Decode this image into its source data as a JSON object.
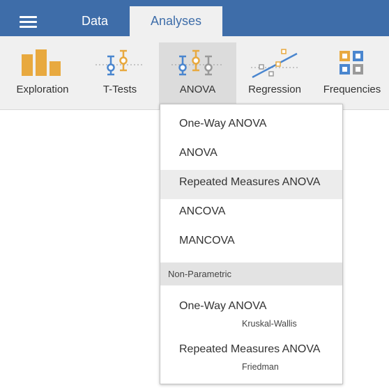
{
  "tabs": {
    "data_label": "Data",
    "analyses_label": "Analyses"
  },
  "ribbon": {
    "exploration": "Exploration",
    "ttests": "T-Tests",
    "anova": "ANOVA",
    "regression": "Regression",
    "frequencies": "Frequencies"
  },
  "menu": {
    "items": [
      "One-Way ANOVA",
      "ANOVA",
      "Repeated Measures ANOVA",
      "ANCOVA",
      "MANCOVA"
    ],
    "section_label": "Non-Parametric",
    "nonparam": [
      {
        "label": "One-Way ANOVA",
        "sub": "Kruskal-Wallis"
      },
      {
        "label": "Repeated Measures ANOVA",
        "sub": "Friedman"
      }
    ]
  },
  "colors": {
    "topbar": "#3e6da9",
    "orange": "#e8a93f",
    "blue": "#4a86cf",
    "gray": "#9a9a9a"
  }
}
